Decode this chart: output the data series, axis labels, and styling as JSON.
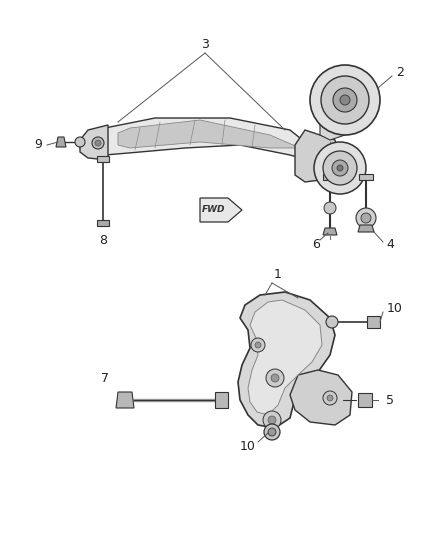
{
  "bg_color": "#ffffff",
  "fig_width": 4.38,
  "fig_height": 5.33,
  "dpi": 100,
  "line_color": "#333333",
  "fill_light": "#e8e8e8",
  "fill_mid": "#cccccc",
  "fill_dark": "#aaaaaa"
}
